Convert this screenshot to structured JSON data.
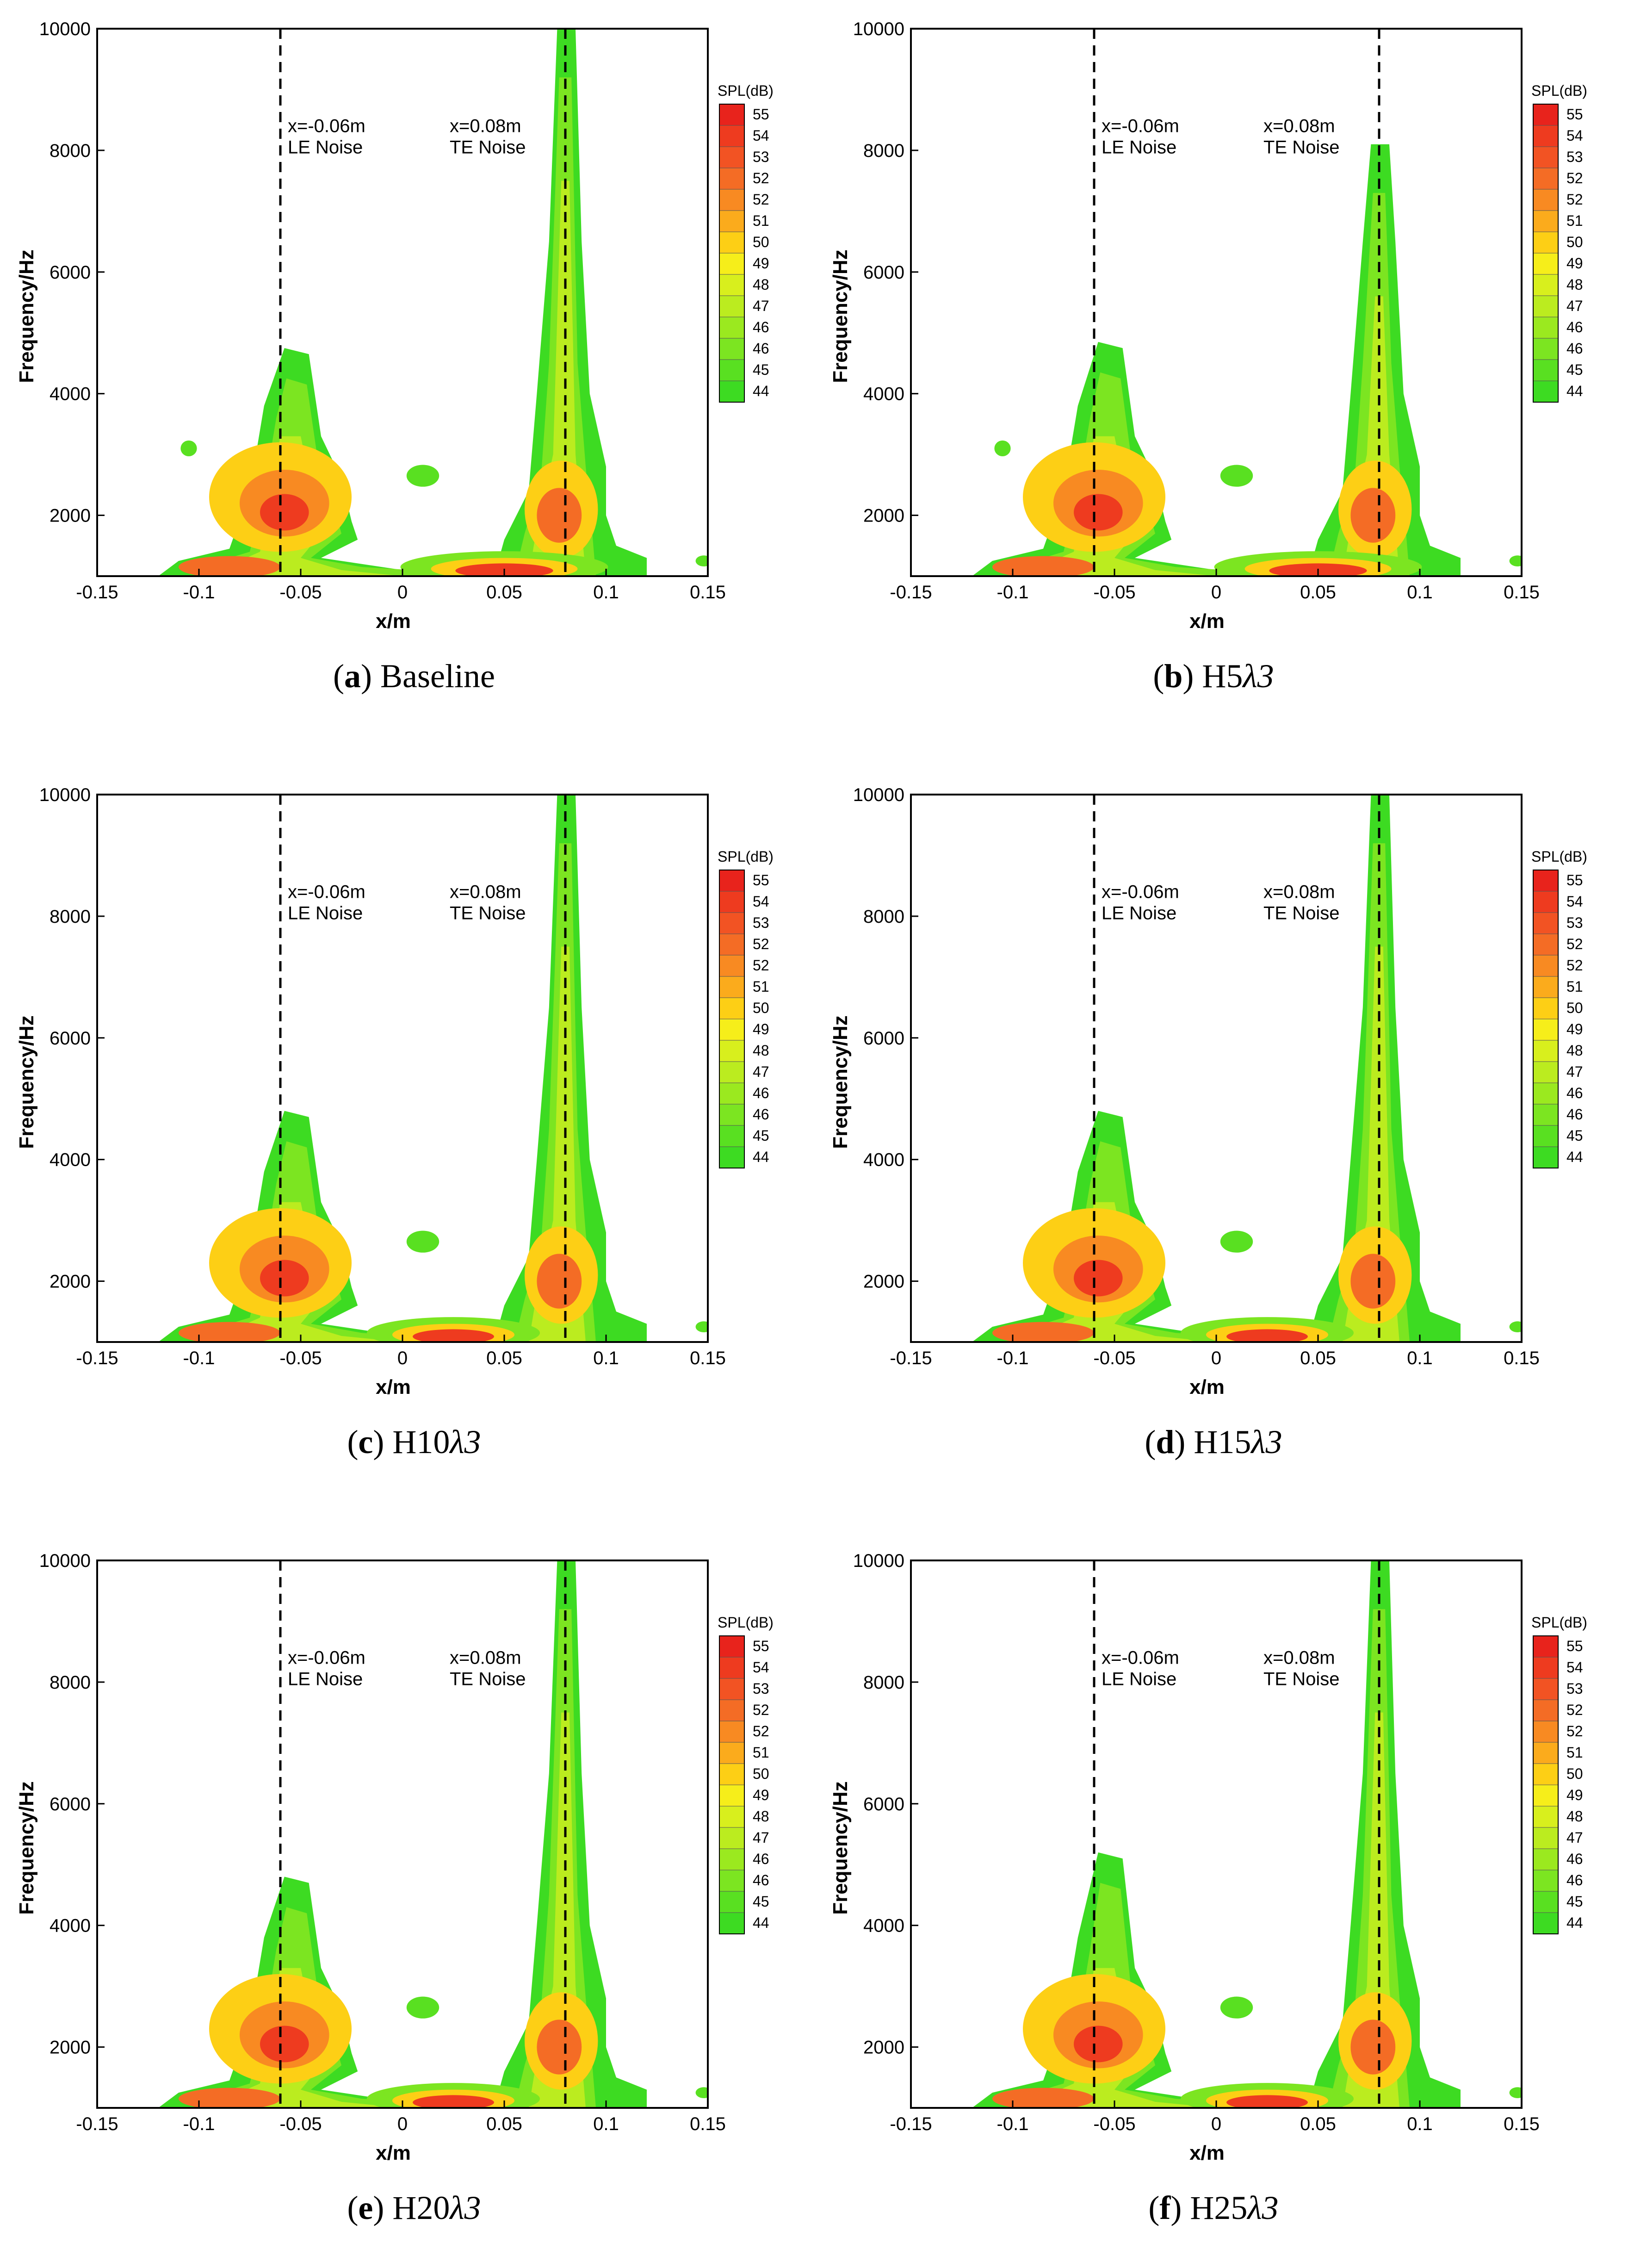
{
  "chart_data": [
    {
      "type": "heatmap",
      "panel": "a",
      "caption": {
        "letter": "a",
        "name": "Baseline"
      },
      "xlabel": "x/m",
      "ylabel": "Frequency/Hz",
      "xlim": [
        -0.15,
        0.15
      ],
      "ylim": [
        1000,
        10000
      ],
      "xticks": [
        "-0.15",
        "-0.1",
        "-0.05",
        "0",
        "0.05",
        "0.1",
        "0.15"
      ],
      "yticks": [
        "2000",
        "4000",
        "6000",
        "8000",
        "10000"
      ],
      "legend_title": "SPL(dB)",
      "legend_levels": [
        "55",
        "54",
        "53",
        "52",
        "52",
        "51",
        "50",
        "49",
        "48",
        "47",
        "46",
        "46",
        "45",
        "44"
      ],
      "annotations": [
        {
          "x": -0.06,
          "lines": [
            "x=-0.06m",
            "LE Noise"
          ]
        },
        {
          "x": 0.08,
          "lines": [
            "x=0.08m",
            "TE Noise"
          ]
        }
      ],
      "le_peak_freq": 4750,
      "te_peak_freq": 10000,
      "dip_patch": true,
      "low_band_x": [
        0.02,
        0.08
      ]
    },
    {
      "type": "heatmap",
      "panel": "b",
      "caption": {
        "letter": "b",
        "name": "H5",
        "lambda": "λ3"
      },
      "xlabel": "x/m",
      "ylabel": "Frequency/Hz",
      "xlim": [
        -0.15,
        0.15
      ],
      "ylim": [
        1000,
        10000
      ],
      "xticks": [
        "-0.15",
        "-0.1",
        "-0.05",
        "0",
        "0.05",
        "0.1",
        "0.15"
      ],
      "yticks": [
        "2000",
        "4000",
        "6000",
        "8000",
        "10000"
      ],
      "legend_title": "SPL(dB)",
      "legend_levels": [
        "55",
        "54",
        "53",
        "52",
        "52",
        "51",
        "50",
        "49",
        "48",
        "47",
        "46",
        "46",
        "45",
        "44"
      ],
      "annotations": [
        {
          "x": -0.06,
          "lines": [
            "x=-0.06m",
            "LE Noise"
          ]
        },
        {
          "x": 0.08,
          "lines": [
            "x=0.08m",
            "TE Noise"
          ]
        }
      ],
      "le_peak_freq": 4850,
      "te_peak_freq": 8100,
      "dip_patch": true,
      "low_band_x": [
        0.02,
        0.08
      ]
    },
    {
      "type": "heatmap",
      "panel": "c",
      "caption": {
        "letter": "c",
        "name": "H10",
        "lambda": "λ3"
      },
      "xlabel": "x/m",
      "ylabel": "Frequency/Hz",
      "xlim": [
        -0.15,
        0.15
      ],
      "ylim": [
        1000,
        10000
      ],
      "xticks": [
        "-0.15",
        "-0.1",
        "-0.05",
        "0",
        "0.05",
        "0.1",
        "0.15"
      ],
      "yticks": [
        "2000",
        "4000",
        "6000",
        "8000",
        "10000"
      ],
      "legend_title": "SPL(dB)",
      "legend_levels": [
        "55",
        "54",
        "53",
        "52",
        "52",
        "51",
        "50",
        "49",
        "48",
        "47",
        "46",
        "46",
        "45",
        "44"
      ],
      "annotations": [
        {
          "x": -0.06,
          "lines": [
            "x=-0.06m",
            "LE Noise"
          ]
        },
        {
          "x": 0.08,
          "lines": [
            "x=0.08m",
            "TE Noise"
          ]
        }
      ],
      "le_peak_freq": 4800,
      "te_peak_freq": 10000,
      "dip_patch": false,
      "low_band_x": [
        0.0,
        0.05
      ]
    },
    {
      "type": "heatmap",
      "panel": "d",
      "caption": {
        "letter": "d",
        "name": "H15",
        "lambda": "λ3"
      },
      "xlabel": "x/m",
      "ylabel": "Frequency/Hz",
      "xlim": [
        -0.15,
        0.15
      ],
      "ylim": [
        1000,
        10000
      ],
      "xticks": [
        "-0.15",
        "-0.1",
        "-0.05",
        "0",
        "0.05",
        "0.1",
        "0.15"
      ],
      "yticks": [
        "2000",
        "4000",
        "6000",
        "8000",
        "10000"
      ],
      "legend_title": "SPL(dB)",
      "legend_levels": [
        "55",
        "54",
        "53",
        "52",
        "52",
        "51",
        "50",
        "49",
        "48",
        "47",
        "46",
        "46",
        "45",
        "44"
      ],
      "annotations": [
        {
          "x": -0.06,
          "lines": [
            "x=-0.06m",
            "LE Noise"
          ]
        },
        {
          "x": 0.08,
          "lines": [
            "x=0.08m",
            "TE Noise"
          ]
        }
      ],
      "le_peak_freq": 4800,
      "te_peak_freq": 10000,
      "dip_patch": false,
      "low_band_x": [
        0.0,
        0.05
      ]
    },
    {
      "type": "heatmap",
      "panel": "e",
      "caption": {
        "letter": "e",
        "name": "H20",
        "lambda": "λ3"
      },
      "xlabel": "x/m",
      "ylabel": "Frequency/Hz",
      "xlim": [
        -0.15,
        0.15
      ],
      "ylim": [
        1000,
        10000
      ],
      "xticks": [
        "-0.15",
        "-0.1",
        "-0.05",
        "0",
        "0.05",
        "0.1",
        "0.15"
      ],
      "yticks": [
        "2000",
        "4000",
        "6000",
        "8000",
        "10000"
      ],
      "legend_title": "SPL(dB)",
      "legend_levels": [
        "55",
        "54",
        "53",
        "52",
        "52",
        "51",
        "50",
        "49",
        "48",
        "47",
        "46",
        "46",
        "45",
        "44"
      ],
      "annotations": [
        {
          "x": -0.06,
          "lines": [
            "x=-0.06m",
            "LE Noise"
          ]
        },
        {
          "x": 0.08,
          "lines": [
            "x=0.08m",
            "TE Noise"
          ]
        }
      ],
      "le_peak_freq": 4800,
      "te_peak_freq": 10000,
      "dip_patch": false,
      "low_band_x": [
        0.0,
        0.05
      ]
    },
    {
      "type": "heatmap",
      "panel": "f",
      "caption": {
        "letter": "f",
        "name": "H25",
        "lambda": "λ3"
      },
      "xlabel": "x/m",
      "ylabel": "Frequency/Hz",
      "xlim": [
        -0.15,
        0.15
      ],
      "ylim": [
        1000,
        10000
      ],
      "xticks": [
        "-0.15",
        "-0.1",
        "-0.05",
        "0",
        "0.05",
        "0.1",
        "0.15"
      ],
      "yticks": [
        "2000",
        "4000",
        "6000",
        "8000",
        "10000"
      ],
      "legend_title": "SPL(dB)",
      "legend_levels": [
        "55",
        "54",
        "53",
        "52",
        "52",
        "51",
        "50",
        "49",
        "48",
        "47",
        "46",
        "46",
        "45",
        "44"
      ],
      "annotations": [
        {
          "x": -0.06,
          "lines": [
            "x=-0.06m",
            "LE Noise"
          ]
        },
        {
          "x": 0.08,
          "lines": [
            "x=0.08m",
            "TE Noise"
          ]
        }
      ],
      "le_peak_freq": 5200,
      "te_peak_freq": 10000,
      "dip_patch": false,
      "low_band_x": [
        0.0,
        0.05
      ]
    }
  ],
  "colors": {
    "levels": [
      "#e8231c",
      "#ee3b1f",
      "#f25323",
      "#f46c25",
      "#f88a22",
      "#fbab1c",
      "#fdcf15",
      "#f6ee1a",
      "#d8ef1d",
      "#bbec1f",
      "#9be91f",
      "#7ce521",
      "#59e021",
      "#3ddb22"
    ],
    "outer": "#3ddb22"
  }
}
